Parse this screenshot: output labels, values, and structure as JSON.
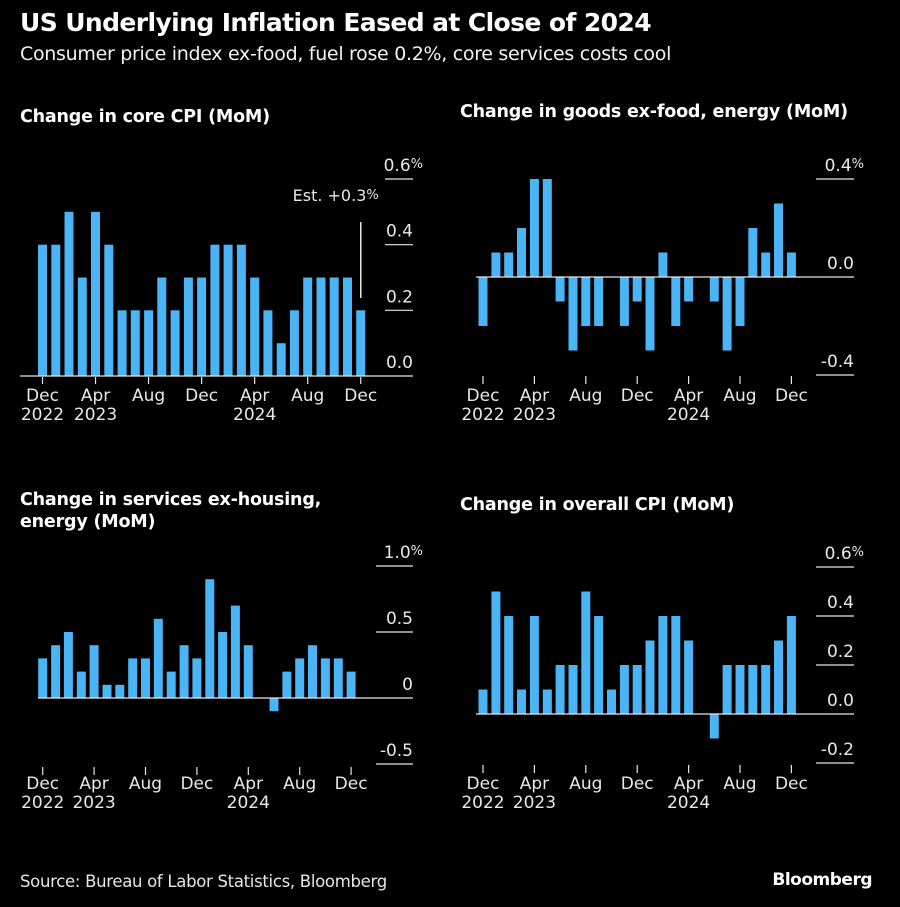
{
  "header": {
    "title": "US Underlying Inflation Eased at Close of 2024",
    "subtitle": "Consumer price index ex-food, fuel rose 0.2%, core services costs cool"
  },
  "footer": {
    "source": "Source: Bureau of Labor Statistics, Bloomberg",
    "logo": "Bloomberg"
  },
  "colors": {
    "bar": "#4ab4f4",
    "background": "#000000",
    "axis": "#e6e6e6"
  },
  "chart_data": [
    {
      "id": "core",
      "type": "bar",
      "title": "Change in core CPI (MoM)",
      "xlabel": "",
      "ylabel": "",
      "unit": "%",
      "ylim": [
        0,
        0.6
      ],
      "yticks": [
        0.0,
        0.2,
        0.4,
        0.6
      ],
      "ytick_labels": [
        "0.0",
        "0.2",
        "0.4",
        "0.6%"
      ],
      "grid": false,
      "categories": [
        "Dec 2022",
        "Jan 2023",
        "Feb 2023",
        "Mar 2023",
        "Apr 2023",
        "May 2023",
        "Jun 2023",
        "Jul 2023",
        "Aug 2023",
        "Sep 2023",
        "Oct 2023",
        "Nov 2023",
        "Dec 2023",
        "Jan 2024",
        "Feb 2024",
        "Mar 2024",
        "Apr 2024",
        "May 2024",
        "Jun 2024",
        "Jul 2024",
        "Aug 2024",
        "Sep 2024",
        "Oct 2024",
        "Nov 2024",
        "Dec 2024"
      ],
      "values": [
        0.4,
        0.4,
        0.5,
        0.3,
        0.5,
        0.4,
        0.2,
        0.2,
        0.2,
        0.3,
        0.2,
        0.3,
        0.3,
        0.4,
        0.4,
        0.4,
        0.3,
        0.2,
        0.1,
        0.2,
        0.3,
        0.3,
        0.3,
        0.3,
        0.2
      ],
      "xticks": [
        {
          "index": 0,
          "month": "Dec",
          "year": "2022"
        },
        {
          "index": 4,
          "month": "Apr",
          "year": "2023"
        },
        {
          "index": 8,
          "month": "Aug",
          "year": ""
        },
        {
          "index": 12,
          "month": "Dec",
          "year": ""
        },
        {
          "index": 16,
          "month": "Apr",
          "year": "2024"
        },
        {
          "index": 20,
          "month": "Aug",
          "year": ""
        },
        {
          "index": 24,
          "month": "Dec",
          "year": ""
        }
      ],
      "annotation": {
        "text": "Est. +0.3%",
        "index": 24,
        "value": 0.3
      }
    },
    {
      "id": "goods",
      "type": "bar",
      "title": "Change in goods ex-food, energy (MoM)",
      "xlabel": "",
      "ylabel": "",
      "unit": "%",
      "ylim": [
        -0.4,
        0.4
      ],
      "yticks": [
        -0.4,
        0.0,
        0.4
      ],
      "ytick_labels": [
        "-0.4",
        "0.0",
        "0.4%"
      ],
      "grid": false,
      "categories": [
        "Dec 2022",
        "Jan 2023",
        "Feb 2023",
        "Mar 2023",
        "Apr 2023",
        "May 2023",
        "Jun 2023",
        "Jul 2023",
        "Aug 2023",
        "Sep 2023",
        "Oct 2023",
        "Nov 2023",
        "Dec 2023",
        "Jan 2024",
        "Feb 2024",
        "Mar 2024",
        "Apr 2024",
        "May 2024",
        "Jun 2024",
        "Jul 2024",
        "Aug 2024",
        "Sep 2024",
        "Oct 2024",
        "Nov 2024",
        "Dec 2024"
      ],
      "values": [
        -0.2,
        0.1,
        0.1,
        0.2,
        0.4,
        0.4,
        -0.1,
        -0.3,
        -0.2,
        -0.2,
        0.0,
        -0.2,
        -0.1,
        -0.3,
        0.1,
        -0.2,
        -0.1,
        0.0,
        -0.1,
        -0.3,
        -0.2,
        0.2,
        0.1,
        0.3,
        0.1
      ],
      "xticks": [
        {
          "index": 0,
          "month": "Dec",
          "year": "2022"
        },
        {
          "index": 4,
          "month": "Apr",
          "year": "2023"
        },
        {
          "index": 8,
          "month": "Aug",
          "year": ""
        },
        {
          "index": 12,
          "month": "Dec",
          "year": ""
        },
        {
          "index": 16,
          "month": "Apr",
          "year": "2024"
        },
        {
          "index": 20,
          "month": "Aug",
          "year": ""
        },
        {
          "index": 24,
          "month": "Dec",
          "year": ""
        }
      ]
    },
    {
      "id": "services",
      "type": "bar",
      "title": "Change in services ex-housing, energy (MoM)",
      "xlabel": "",
      "ylabel": "",
      "unit": "%",
      "ylim": [
        -0.5,
        1.0
      ],
      "yticks": [
        -0.5,
        0.0,
        0.5,
        1.0
      ],
      "ytick_labels": [
        "-0.5",
        "0",
        "0.5",
        "1.0%"
      ],
      "grid": false,
      "categories": [
        "Dec 2022",
        "Jan 2023",
        "Feb 2023",
        "Mar 2023",
        "Apr 2023",
        "May 2023",
        "Jun 2023",
        "Jul 2023",
        "Aug 2023",
        "Sep 2023",
        "Oct 2023",
        "Nov 2023",
        "Dec 2023",
        "Jan 2024",
        "Feb 2024",
        "Mar 2024",
        "Apr 2024",
        "May 2024",
        "Jun 2024",
        "Jul 2024",
        "Aug 2024",
        "Sep 2024",
        "Oct 2024",
        "Nov 2024",
        "Dec 2024"
      ],
      "values": [
        0.3,
        0.4,
        0.5,
        0.2,
        0.4,
        0.1,
        0.1,
        0.3,
        0.3,
        0.6,
        0.2,
        0.4,
        0.3,
        0.9,
        0.5,
        0.7,
        0.4,
        0.0,
        -0.1,
        0.2,
        0.3,
        0.4,
        0.3,
        0.3,
        0.2
      ],
      "xticks": [
        {
          "index": 0,
          "month": "Dec",
          "year": "2022"
        },
        {
          "index": 4,
          "month": "Apr",
          "year": "2023"
        },
        {
          "index": 8,
          "month": "Aug",
          "year": ""
        },
        {
          "index": 12,
          "month": "Dec",
          "year": ""
        },
        {
          "index": 16,
          "month": "Apr",
          "year": "2024"
        },
        {
          "index": 20,
          "month": "Aug",
          "year": ""
        },
        {
          "index": 24,
          "month": "Dec",
          "year": ""
        }
      ]
    },
    {
      "id": "overall",
      "type": "bar",
      "title": "Change in overall CPI (MoM)",
      "xlabel": "",
      "ylabel": "",
      "unit": "%",
      "ylim": [
        -0.2,
        0.6
      ],
      "yticks": [
        -0.2,
        0.0,
        0.2,
        0.4,
        0.6
      ],
      "ytick_labels": [
        "-0.2",
        "0.0",
        "0.2",
        "0.4",
        "0.6%"
      ],
      "grid": false,
      "categories": [
        "Dec 2022",
        "Jan 2023",
        "Feb 2023",
        "Mar 2023",
        "Apr 2023",
        "May 2023",
        "Jun 2023",
        "Jul 2023",
        "Aug 2023",
        "Sep 2023",
        "Oct 2023",
        "Nov 2023",
        "Dec 2023",
        "Jan 2024",
        "Feb 2024",
        "Mar 2024",
        "Apr 2024",
        "May 2024",
        "Jun 2024",
        "Jul 2024",
        "Aug 2024",
        "Sep 2024",
        "Oct 2024",
        "Nov 2024",
        "Dec 2024"
      ],
      "values": [
        0.1,
        0.5,
        0.4,
        0.1,
        0.4,
        0.1,
        0.2,
        0.2,
        0.5,
        0.4,
        0.1,
        0.2,
        0.2,
        0.3,
        0.4,
        0.4,
        0.3,
        0.0,
        -0.1,
        0.2,
        0.2,
        0.2,
        0.2,
        0.3,
        0.4
      ],
      "xticks": [
        {
          "index": 0,
          "month": "Dec",
          "year": "2022"
        },
        {
          "index": 4,
          "month": "Apr",
          "year": "2023"
        },
        {
          "index": 8,
          "month": "Aug",
          "year": ""
        },
        {
          "index": 12,
          "month": "Dec",
          "year": ""
        },
        {
          "index": 16,
          "month": "Apr",
          "year": "2024"
        },
        {
          "index": 20,
          "month": "Aug",
          "year": ""
        },
        {
          "index": 24,
          "month": "Dec",
          "year": ""
        }
      ]
    }
  ]
}
